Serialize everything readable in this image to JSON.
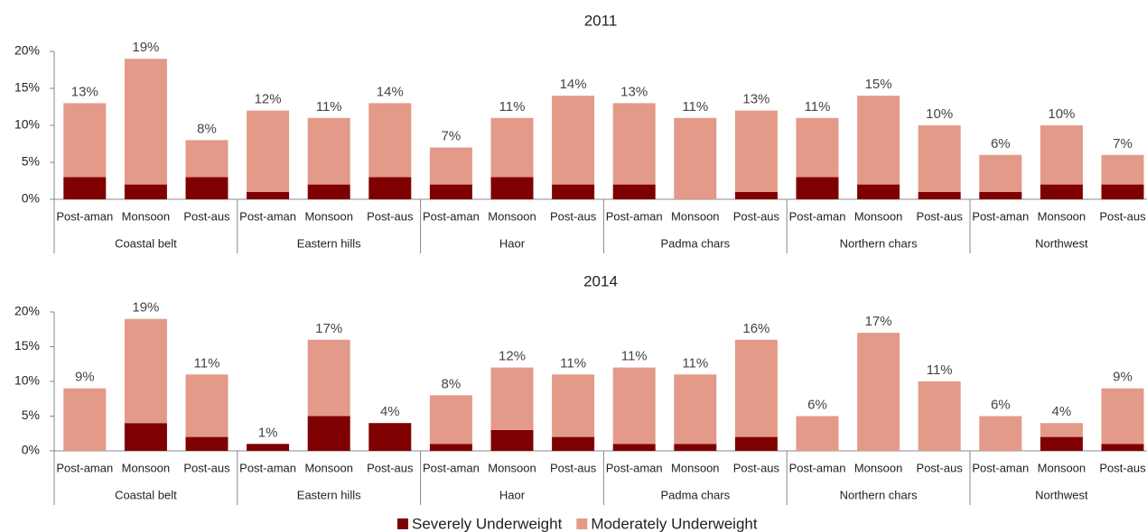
{
  "chart_data": [
    {
      "type": "bar",
      "stacked": true,
      "title": "2011",
      "categories": [
        "Post-aman",
        "Monsoon",
        "Post-aus",
        "Post-aman",
        "Monsoon",
        "Post-aus",
        "Post-aman",
        "Monsoon",
        "Post-aus",
        "Post-aman",
        "Monsoon",
        "Post-aus",
        "Post-aman",
        "Monsoon",
        "Post-aus",
        "Post-aman",
        "Monsoon",
        "Post-aus"
      ],
      "groups": [
        "Coastal belt",
        "Eastern hills",
        "Haor",
        "Padma chars",
        "Northern chars",
        "Northwest"
      ],
      "series": [
        {
          "color": "#7f0000",
          "values": [
            3,
            2,
            3,
            1,
            2,
            3,
            2,
            3,
            2,
            2,
            0,
            1,
            3,
            2,
            1,
            1,
            2,
            2
          ]
        },
        {
          "color": "#e39a88",
          "values": [
            10,
            17,
            5,
            11,
            9,
            10,
            5,
            8,
            12,
            11,
            11,
            11,
            8,
            12,
            9,
            5,
            8,
            4
          ]
        }
      ],
      "total_labels": [
        "13%",
        "19%",
        "8%",
        "12%",
        "11%",
        "14%",
        "7%",
        "11%",
        "14%",
        "13%",
        "11%",
        "13%",
        "11%",
        "15%",
        "10%",
        "6%",
        "10%",
        "7%"
      ],
      "ylim": [
        0,
        20
      ],
      "yticks": [
        {
          "value": 0,
          "label": "0%"
        },
        {
          "value": 5,
          "label": "5%"
        },
        {
          "value": 10,
          "label": "10%"
        },
        {
          "value": 15,
          "label": "15%"
        },
        {
          "value": 20,
          "label": "20%"
        }
      ]
    },
    {
      "type": "bar",
      "stacked": true,
      "title": "2014",
      "categories": [
        "Post-aman",
        "Monsoon",
        "Post-aus",
        "Post-aman",
        "Monsoon",
        "Post-aus",
        "Post-aman",
        "Monsoon",
        "Post-aus",
        "Post-aman",
        "Monsoon",
        "Post-aus",
        "Post-aman",
        "Monsoon",
        "Post-aus",
        "Post-aman",
        "Monsoon",
        "Post-aus"
      ],
      "groups": [
        "Coastal belt",
        "Eastern hills",
        "Haor",
        "Padma chars",
        "Northern chars",
        "Northwest"
      ],
      "series": [
        {
          "name": "Severely Underweight",
          "color": "#7f0000",
          "values": [
            0,
            4,
            2,
            1,
            5,
            4,
            1,
            3,
            2,
            1,
            1,
            2,
            0,
            0,
            0,
            0,
            2,
            1
          ]
        },
        {
          "name": "Moderately Underweight",
          "color": "#e39a88",
          "values": [
            9,
            15,
            9,
            0,
            11,
            0,
            7,
            9,
            9,
            11,
            10,
            14,
            5,
            17,
            10,
            5,
            2,
            8
          ]
        }
      ],
      "total_labels": [
        "9%",
        "19%",
        "11%",
        "1%",
        "17%",
        "4%",
        "8%",
        "12%",
        "11%",
        "11%",
        "11%",
        "16%",
        "6%",
        "17%",
        "11%",
        "6%",
        "4%",
        "9%"
      ],
      "ylim": [
        0,
        20
      ],
      "yticks": [
        {
          "value": 0,
          "label": "0%"
        },
        {
          "value": 5,
          "label": "5%"
        },
        {
          "value": 10,
          "label": "10%"
        },
        {
          "value": 15,
          "label": "15%"
        },
        {
          "value": 20,
          "label": "20%"
        }
      ]
    }
  ]
}
